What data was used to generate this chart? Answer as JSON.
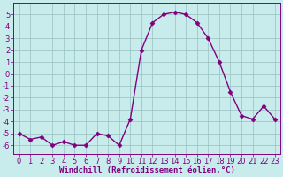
{
  "x": [
    0,
    1,
    2,
    3,
    4,
    5,
    6,
    7,
    8,
    9,
    10,
    11,
    12,
    13,
    14,
    15,
    16,
    17,
    18,
    19,
    20,
    21,
    22,
    23
  ],
  "y": [
    -5.0,
    -5.5,
    -5.3,
    -6.0,
    -5.7,
    -6.0,
    -6.0,
    -5.0,
    -5.2,
    -6.0,
    -3.8,
    2.0,
    4.3,
    5.0,
    5.2,
    5.0,
    4.3,
    3.0,
    1.0,
    -1.5,
    -3.5,
    -3.8,
    -2.7,
    -3.8
  ],
  "line_color": "#800080",
  "marker": "D",
  "marker_size": 2.5,
  "bg_color": "#c8ecec",
  "grid_color": "#a0c8c8",
  "xlabel": "Windchill (Refroidissement éolien,°C)",
  "ylabel": "",
  "xlim": [
    -0.5,
    23.5
  ],
  "ylim": [
    -6.7,
    6.0
  ],
  "yticks": [
    -6,
    -5,
    -4,
    -3,
    -2,
    -1,
    0,
    1,
    2,
    3,
    4,
    5
  ],
  "xticks": [
    0,
    1,
    2,
    3,
    4,
    5,
    6,
    7,
    8,
    9,
    10,
    11,
    12,
    13,
    14,
    15,
    16,
    17,
    18,
    19,
    20,
    21,
    22,
    23
  ],
  "axis_color": "#800080",
  "label_fontsize": 6.5,
  "tick_fontsize": 6.0,
  "linewidth": 1.0
}
